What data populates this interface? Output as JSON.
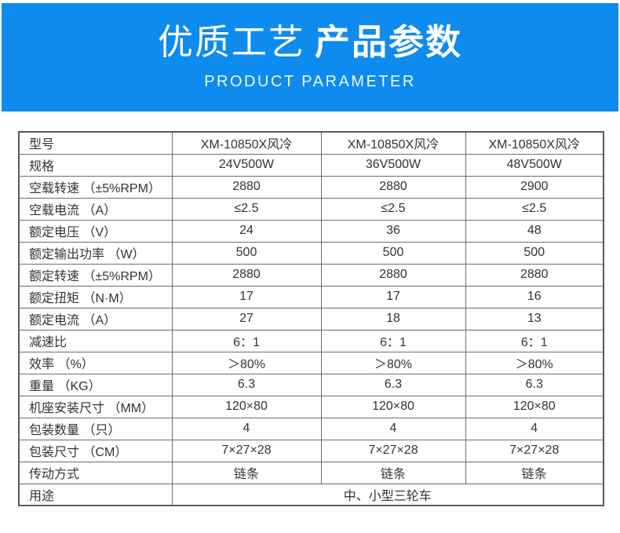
{
  "banner": {
    "title_regular": "优质工艺",
    "title_bold": "产品参数",
    "subtitle": "PRODUCT PARAMETER",
    "background_color": "#0e8bef",
    "text_color": "#ffffff"
  },
  "table": {
    "border_color": "#6e6e6e",
    "text_color": "#333333",
    "columns": 4,
    "rows": [
      {
        "label": "型号",
        "values": [
          "XM-10850X风冷",
          "XM-10850X风冷",
          "XM-10850X风冷"
        ]
      },
      {
        "label": "规格",
        "values": [
          "24V500W",
          "36V500W",
          "48V500W"
        ]
      },
      {
        "label": "空载转速 （±5%RPM）",
        "values": [
          "2880",
          "2880",
          "2900"
        ]
      },
      {
        "label": "空载电流 （A）",
        "values": [
          "≤2.5",
          "≤2.5",
          "≤2.5"
        ]
      },
      {
        "label": "额定电压 （V）",
        "values": [
          "24",
          "36",
          "48"
        ]
      },
      {
        "label": "额定输出功率 （W）",
        "values": [
          "500",
          "500",
          "500"
        ]
      },
      {
        "label": "额定转速 （±5%RPM）",
        "values": [
          "2880",
          "2880",
          "2880"
        ]
      },
      {
        "label": "额定扭矩 （N·M）",
        "values": [
          "17",
          "17",
          "16"
        ]
      },
      {
        "label": "额定电流 （A）",
        "values": [
          "27",
          "18",
          "13"
        ]
      },
      {
        "label": "减速比",
        "values": [
          "6：1",
          "6：1",
          "6：1"
        ]
      },
      {
        "label": "效率 （%）",
        "values": [
          "＞80%",
          "＞80%",
          "＞80%"
        ]
      },
      {
        "label": "重量 （KG）",
        "values": [
          "6.3",
          "6.3",
          "6.3"
        ]
      },
      {
        "label": "机座安装尺寸 （MM）",
        "values": [
          "120×80",
          "120×80",
          "120×80"
        ]
      },
      {
        "label": "包装数量 （只）",
        "values": [
          "4",
          "4",
          "4"
        ]
      },
      {
        "label": "包装尺寸 （CM）",
        "values": [
          "7×27×28",
          "7×27×28",
          "7×27×28"
        ]
      },
      {
        "label": "传动方式",
        "values": [
          "链条",
          "链条",
          "链条"
        ]
      },
      {
        "label": "用途",
        "values": [
          "中、小型三轮车"
        ],
        "span": true
      }
    ]
  }
}
